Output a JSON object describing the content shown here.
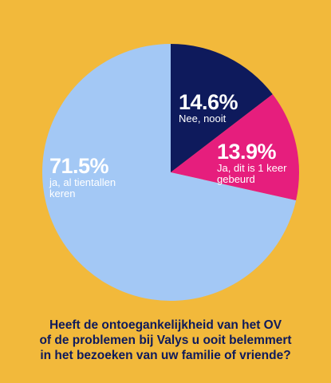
{
  "chart_data": {
    "type": "pie",
    "categories": [
      "Nee, nooit",
      "Ja, dit is 1 keer gebeurd",
      "ja, al tientallen keren"
    ],
    "values": [
      14.6,
      13.9,
      71.5
    ],
    "value_labels": [
      "14.6%",
      "13.9%",
      "71.5%"
    ],
    "colors": [
      "#0E1A5C",
      "#E61E7D",
      "#A3C8F5"
    ],
    "title_lines": [
      "Heeft de ontoegankelijkheid van het OV",
      "of de problemen bij Valys u ooit belemmert",
      "in het bezoeken van uw familie of vriende?"
    ],
    "start_direction": "top",
    "direction": "clockwise",
    "legend": "none"
  },
  "colors": {
    "background": "#F2B93B",
    "question_text": "#0E1A5C",
    "label_text": "#ffffff"
  },
  "labels": {
    "nee_sub": [
      "Nee, nooit"
    ],
    "ja1_sub": [
      "Ja, dit is 1 keer",
      "gebeurd"
    ],
    "ja71_sub": [
      "ja, al tientallen",
      "keren"
    ]
  }
}
